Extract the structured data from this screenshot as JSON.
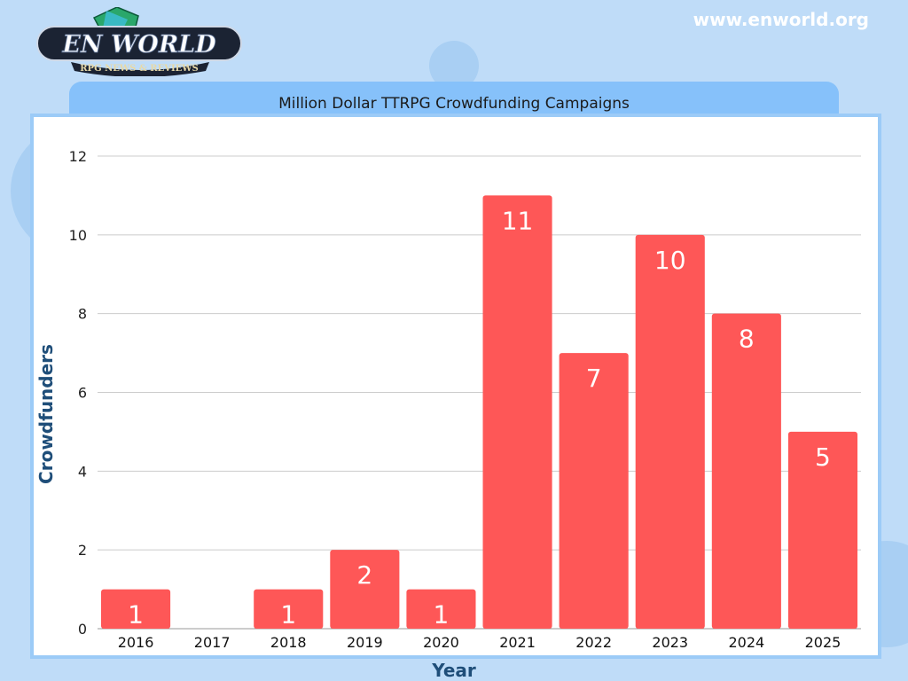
{
  "header": {
    "site_url": "www.enworld.org",
    "logo_text": "EN WORLD",
    "logo_tagline": "RPG NEWS & REVIEWS"
  },
  "colors": {
    "bar": "#fe5757",
    "accent": "#86c1fa",
    "axis_title": "#1f4e79",
    "background": "#bfdcf8"
  },
  "chart_data": {
    "type": "bar",
    "title": "Million Dollar TTRPG Crowdfunding Campaigns",
    "xlabel": "Year",
    "ylabel": "Crowdfunders",
    "categories": [
      "2016",
      "2017",
      "2018",
      "2019",
      "2020",
      "2021",
      "2022",
      "2023",
      "2024",
      "2025"
    ],
    "values": [
      1,
      0,
      1,
      2,
      1,
      11,
      7,
      10,
      8,
      5
    ],
    "ylim": [
      0,
      12
    ],
    "yticks": [
      0,
      2,
      4,
      6,
      8,
      10,
      12
    ],
    "grid": true,
    "data_labels": true
  }
}
